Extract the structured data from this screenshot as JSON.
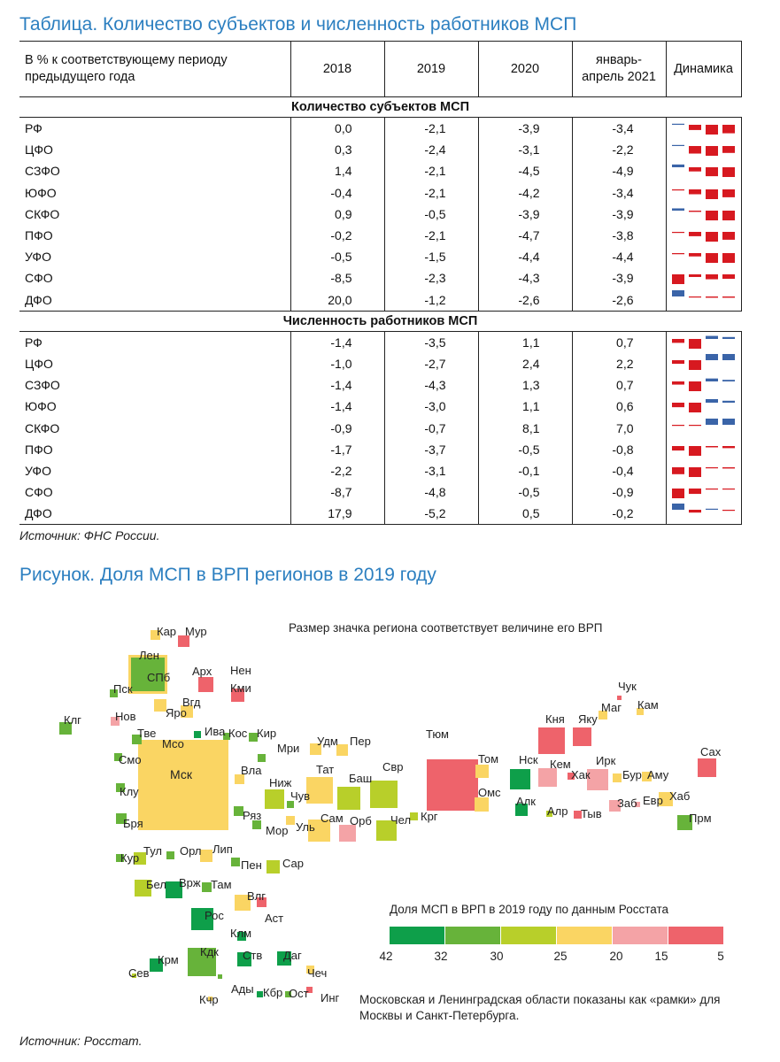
{
  "table_title": "Таблица. Количество субъектов и численность работников МСП",
  "table": {
    "header_row_label": [
      "В % к соответствующему периоду",
      "предыдущего года"
    ],
    "years": [
      [
        "2018"
      ],
      [
        "2019"
      ],
      [
        "2020"
      ],
      [
        "январь-",
        "апрель 2021"
      ]
    ],
    "dynamics_label": "Динамика",
    "sections": [
      {
        "title": "Количество субъектов МСП",
        "rows": [
          {
            "name": "РФ",
            "values": [
              "0,0",
              "-2,1",
              "-3,9",
              "-3,4"
            ]
          },
          {
            "name": "ЦФО",
            "values": [
              "0,3",
              "-2,4",
              "-3,1",
              "-2,2"
            ]
          },
          {
            "name": "СЗФО",
            "values": [
              "1,4",
              "-2,1",
              "-4,5",
              "-4,9"
            ]
          },
          {
            "name": "ЮФО",
            "values": [
              "-0,4",
              "-2,1",
              "-4,2",
              "-3,4"
            ]
          },
          {
            "name": "СКФО",
            "values": [
              "0,9",
              "-0,5",
              "-3,9",
              "-3,9"
            ]
          },
          {
            "name": "ПФО",
            "values": [
              "-0,2",
              "-2,1",
              "-4,7",
              "-3,8"
            ]
          },
          {
            "name": "УФО",
            "values": [
              "-0,5",
              "-1,5",
              "-4,4",
              "-4,4"
            ]
          },
          {
            "name": "СФО",
            "values": [
              "-8,5",
              "-2,3",
              "-4,3",
              "-3,9"
            ]
          },
          {
            "name": "ДФО",
            "values": [
              "20,0",
              "-1,2",
              "-2,6",
              "-2,6"
            ]
          }
        ]
      },
      {
        "title": "Численность работников МСП",
        "rows": [
          {
            "name": "РФ",
            "values": [
              "-1,4",
              "-3,5",
              "1,1",
              "0,7"
            ]
          },
          {
            "name": "ЦФО",
            "values": [
              "-1,0",
              "-2,7",
              "2,4",
              "2,2"
            ]
          },
          {
            "name": "СЗФО",
            "values": [
              "-1,4",
              "-4,3",
              "1,3",
              "0,7"
            ]
          },
          {
            "name": "ЮФО",
            "values": [
              "-1,4",
              "-3,0",
              "1,1",
              "0,6"
            ]
          },
          {
            "name": "СКФО",
            "values": [
              "-0,9",
              "-0,7",
              "8,1",
              "7,0"
            ]
          },
          {
            "name": "ПФО",
            "values": [
              "-1,7",
              "-3,7",
              "-0,5",
              "-0,8"
            ]
          },
          {
            "name": "УФО",
            "values": [
              "-2,2",
              "-3,1",
              "-0,1",
              "-0,4"
            ]
          },
          {
            "name": "СФО",
            "values": [
              "-8,7",
              "-4,8",
              "-0,5",
              "-0,9"
            ]
          },
          {
            "name": "ДФО",
            "values": [
              "17,9",
              "-5,2",
              "0,5",
              "-0,2"
            ]
          }
        ]
      }
    ],
    "source": "Источник: ФНС России."
  },
  "figure_title": "Рисунок. Доля МСП в ВРП регионов в 2019 году",
  "figure": {
    "note": "Размер значка региона соответствует величине его ВРП",
    "legend_title": "Доля МСП в ВРП в 2019 году по данным Росстата",
    "legend_ticks": [
      "42",
      "32",
      "30",
      "25",
      "20",
      "15",
      "5"
    ],
    "legend_colors": [
      "#0e9f4a",
      "#67b33a",
      "#b8cf2a",
      "#fad563",
      "#f4a3a6",
      "#ee636b"
    ],
    "frame_note": [
      "Московская и Ленинградская области показаны как «рамки» для",
      "Москвы и Санкт-Петербурга."
    ],
    "source": "Источник: Росстат."
  },
  "chart_data": {
    "type": "tile-map",
    "title": "Рисунок. Доля МСП в ВРП регионов в 2019 году",
    "legend_title": "Доля МСП в ВРП в 2019 году по данным Росстата",
    "legend_breaks": [
      42,
      32,
      30,
      25,
      20,
      15,
      5
    ],
    "color_classes": [
      "#0e9f4a",
      "#67b33a",
      "#b8cf2a",
      "#fad563",
      "#f4a3a6",
      "#ee636b"
    ],
    "regions": [
      {
        "name": "Кар",
        "class": 3
      },
      {
        "name": "Мур",
        "class": 5
      },
      {
        "name": "Лен",
        "class": 3,
        "frame": true
      },
      {
        "name": "СПб",
        "class": 1
      },
      {
        "name": "Арх",
        "class": 5
      },
      {
        "name": "Нен",
        "class": 5
      },
      {
        "name": "Кми",
        "class": 5
      },
      {
        "name": "Пск",
        "class": 1
      },
      {
        "name": "Нов",
        "class": 4
      },
      {
        "name": "Яро",
        "class": 3
      },
      {
        "name": "Вгд",
        "class": 3
      },
      {
        "name": "Клг",
        "class": 1
      },
      {
        "name": "Тве",
        "class": 1
      },
      {
        "name": "Ива",
        "class": 0
      },
      {
        "name": "Кос",
        "class": 1
      },
      {
        "name": "Кир",
        "class": 1
      },
      {
        "name": "Мсо",
        "class": 3,
        "frame": true
      },
      {
        "name": "Мск",
        "class": 3
      },
      {
        "name": "Смо",
        "class": 1
      },
      {
        "name": "Вла",
        "class": 3
      },
      {
        "name": "Мри",
        "class": 1
      },
      {
        "name": "Клу",
        "class": 1
      },
      {
        "name": "Ниж",
        "class": 2
      },
      {
        "name": "Чув",
        "class": 1
      },
      {
        "name": "Удм",
        "class": 3
      },
      {
        "name": "Пер",
        "class": 3
      },
      {
        "name": "Тат",
        "class": 3
      },
      {
        "name": "Баш",
        "class": 2
      },
      {
        "name": "Свр",
        "class": 2
      },
      {
        "name": "Тюм",
        "class": 5
      },
      {
        "name": "Том",
        "class": 3
      },
      {
        "name": "Омс",
        "class": 3
      },
      {
        "name": "Нск",
        "class": 0
      },
      {
        "name": "Алк",
        "class": 0
      },
      {
        "name": "Кем",
        "class": 4
      },
      {
        "name": "Хак",
        "class": 5
      },
      {
        "name": "Ирк",
        "class": 4
      },
      {
        "name": "Бур",
        "class": 3
      },
      {
        "name": "Аму",
        "class": 3
      },
      {
        "name": "Кня",
        "class": 5
      },
      {
        "name": "Яку",
        "class": 5
      },
      {
        "name": "Маг",
        "class": 3
      },
      {
        "name": "Чук",
        "class": 5
      },
      {
        "name": "Кам",
        "class": 3
      },
      {
        "name": "Сах",
        "class": 5
      },
      {
        "name": "Бря",
        "class": 1
      },
      {
        "name": "Ряз",
        "class": 1
      },
      {
        "name": "Мор",
        "class": 1
      },
      {
        "name": "Уль",
        "class": 3
      },
      {
        "name": "Сам",
        "class": 3
      },
      {
        "name": "Орб",
        "class": 4
      },
      {
        "name": "Чел",
        "class": 2
      },
      {
        "name": "Крг",
        "class": 2
      },
      {
        "name": "Алр",
        "class": 2
      },
      {
        "name": "Тыв",
        "class": 5
      },
      {
        "name": "Заб",
        "class": 4
      },
      {
        "name": "Евр",
        "class": 4
      },
      {
        "name": "Хаб",
        "class": 3
      },
      {
        "name": "Прм",
        "class": 1
      },
      {
        "name": "Кур",
        "class": 1
      },
      {
        "name": "Тул",
        "class": 2
      },
      {
        "name": "Орл",
        "class": 1
      },
      {
        "name": "Лип",
        "class": 3
      },
      {
        "name": "Пен",
        "class": 1
      },
      {
        "name": "Сар",
        "class": 2
      },
      {
        "name": "Бел",
        "class": 2
      },
      {
        "name": "Врж",
        "class": 0
      },
      {
        "name": "Там",
        "class": 1
      },
      {
        "name": "Влг",
        "class": 3
      },
      {
        "name": "Рос",
        "class": 0
      },
      {
        "name": "Аст",
        "class": 5
      },
      {
        "name": "Клм",
        "class": 0
      },
      {
        "name": "Сев",
        "class": 2
      },
      {
        "name": "Крм",
        "class": 0
      },
      {
        "name": "Кдк",
        "class": 1
      },
      {
        "name": "Ств",
        "class": 0
      },
      {
        "name": "Даг",
        "class": 0
      },
      {
        "name": "Чеч",
        "class": 3
      },
      {
        "name": "Кчр",
        "class": 3
      },
      {
        "name": "Ады",
        "class": 1
      },
      {
        "name": "Кбр",
        "class": 0
      },
      {
        "name": "Ост",
        "class": 1
      },
      {
        "name": "Инг",
        "class": 5
      }
    ]
  }
}
